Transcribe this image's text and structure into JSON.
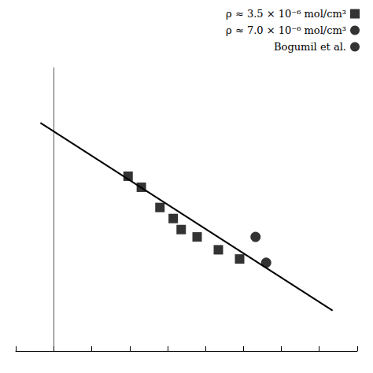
{
  "chart_data": {
    "type": "scatter",
    "xlim": [
      -0.143,
      1.143
    ],
    "xticks": [
      -0.143,
      0.0,
      0.143,
      0.286,
      0.429,
      0.571,
      0.714,
      0.857,
      1.0,
      1.143
    ],
    "ylim": [
      0.18,
      0.95
    ],
    "yticks": [],
    "tick_labels": false,
    "grid": false,
    "legend": "upper right",
    "series": [
      {
        "name": "ρ ≈ 3.5 × 10⁻⁶ mol/cm³",
        "type": "scatter",
        "marker": "square",
        "color": "#000000",
        "x": [
          0.28,
          0.33,
          0.4,
          0.45,
          0.48,
          0.54,
          0.62,
          0.7
        ],
        "y": [
          0.655,
          0.625,
          0.57,
          0.54,
          0.51,
          0.49,
          0.455,
          0.43
        ]
      },
      {
        "name": "ρ ≈ 7.0 × 10⁻⁶ mol/cm³",
        "type": "scatter",
        "marker": "circle",
        "color": "#000000",
        "x": [
          0.76,
          0.8
        ],
        "y": [
          0.49,
          0.42
        ]
      },
      {
        "name": "Bogumil et al.",
        "type": "scatter",
        "marker": "circle",
        "color": "#000000",
        "x": [],
        "y": []
      },
      {
        "type": "line",
        "line_style": "solid",
        "color": "#000000",
        "x": [
          -0.05,
          1.05
        ],
        "y": [
          0.8,
          0.29
        ]
      }
    ]
  }
}
